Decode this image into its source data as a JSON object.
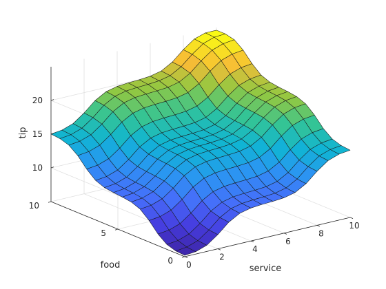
{
  "chart_data": {
    "type": "surface",
    "colormap": "parula",
    "xlabel": "service",
    "ylabel": "food",
    "zlabel": "tip",
    "xlim": [
      0,
      10
    ],
    "ylim": [
      0,
      10
    ],
    "zlim": [
      5,
      25
    ],
    "clim": [
      5.1,
      24.6
    ],
    "grid": true,
    "x_ticks": [
      0,
      2,
      4,
      6,
      8,
      10
    ],
    "y_ticks": [
      0,
      5,
      10
    ],
    "z_ticks": [
      10,
      15,
      20
    ],
    "x_tick_labels": [
      "0",
      "2",
      "4",
      "6",
      "8",
      "10"
    ],
    "y_tick_labels": [
      "0",
      "5",
      "10"
    ],
    "z_tick_labels": [
      "10",
      "15",
      "20"
    ],
    "grid_points": 16,
    "surface_model": {
      "base": 15,
      "food_effect": 5,
      "service_effect": 5,
      "food_low_center": 2.4,
      "food_high_center": 7.6,
      "service_low_center": 2.2,
      "service_high_center": 7.8,
      "transition_width": 0.55,
      "min_tip": 5.2,
      "max_tip": 24.6
    }
  }
}
